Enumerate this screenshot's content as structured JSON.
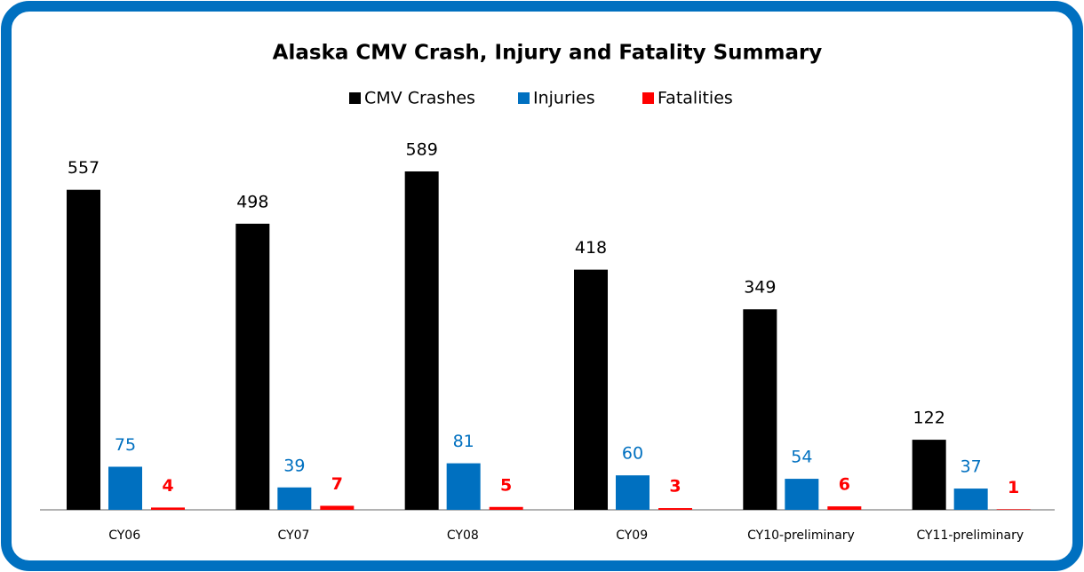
{
  "chart_data": {
    "type": "bar",
    "title": "Alaska CMV Crash, Injury and Fatality Summary",
    "categories": [
      "CY06",
      "CY07",
      "CY08",
      "CY09",
      "CY10-preliminary",
      "CY11-preliminary"
    ],
    "series": [
      {
        "name": "CMV Crashes",
        "color": "#000000",
        "values": [
          557,
          498,
          589,
          418,
          349,
          122
        ]
      },
      {
        "name": "Injuries",
        "color": "#0070c0",
        "values": [
          75,
          39,
          81,
          60,
          54,
          37
        ]
      },
      {
        "name": "Fatalities",
        "color": "#ff0000",
        "values": [
          4,
          7,
          5,
          3,
          6,
          1
        ]
      }
    ]
  }
}
